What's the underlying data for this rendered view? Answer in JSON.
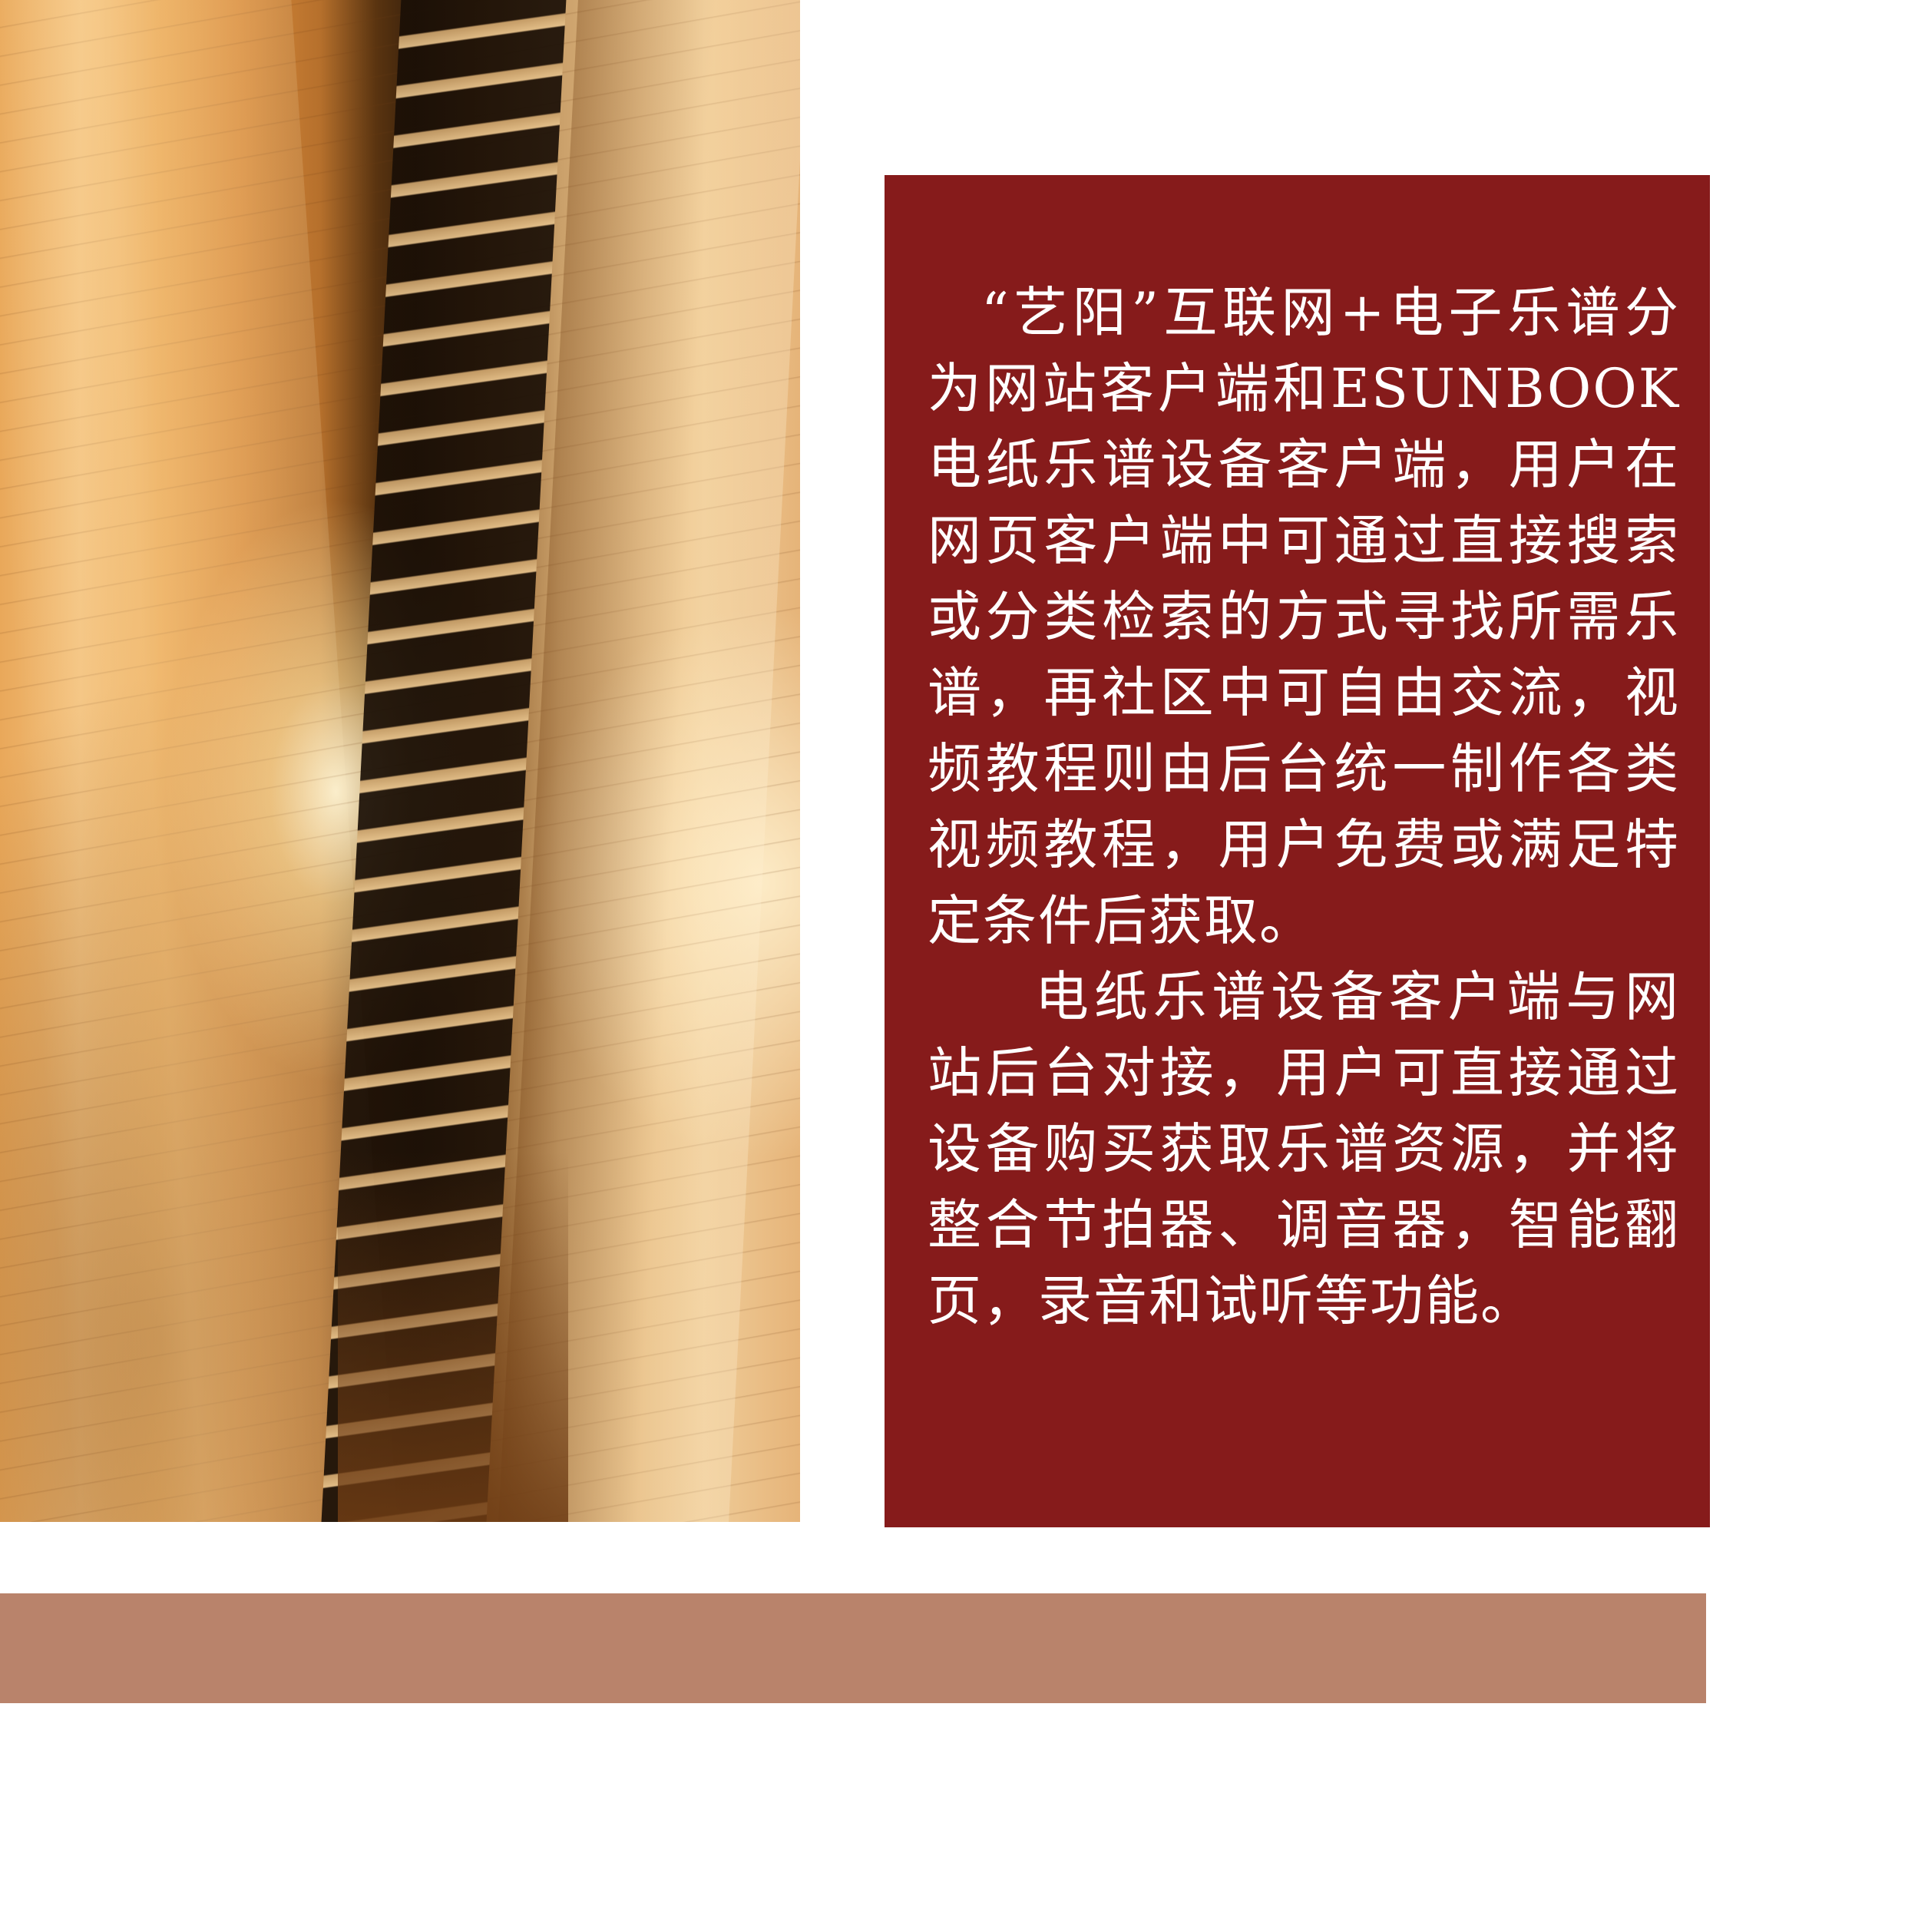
{
  "panel": {
    "paragraphs": [
      "“艺阳”互联网+电子乐谱分为网站客户端和ESUNBOOK电纸乐谱设备客户端，用户在网页客户端中可通过直接搜索或分类检索的方式寻找所需乐谱，再社区中可自由交流，视频教程则由后台统一制作各类视频教程，用户免费或满足特定条件后获取。",
      "电纸乐谱设备客户端与网站后台对接，用户可直接通过设备购买获取乐谱资源，并将整合节拍器、调音器，智能翻页，录音和试听等功能。"
    ],
    "background_color": "#861b1b",
    "text_color": "#ffffff"
  },
  "photo": {
    "subject": "sheet-music-and-piano-keys"
  },
  "accent_bar": {
    "color": "#b9836b"
  }
}
